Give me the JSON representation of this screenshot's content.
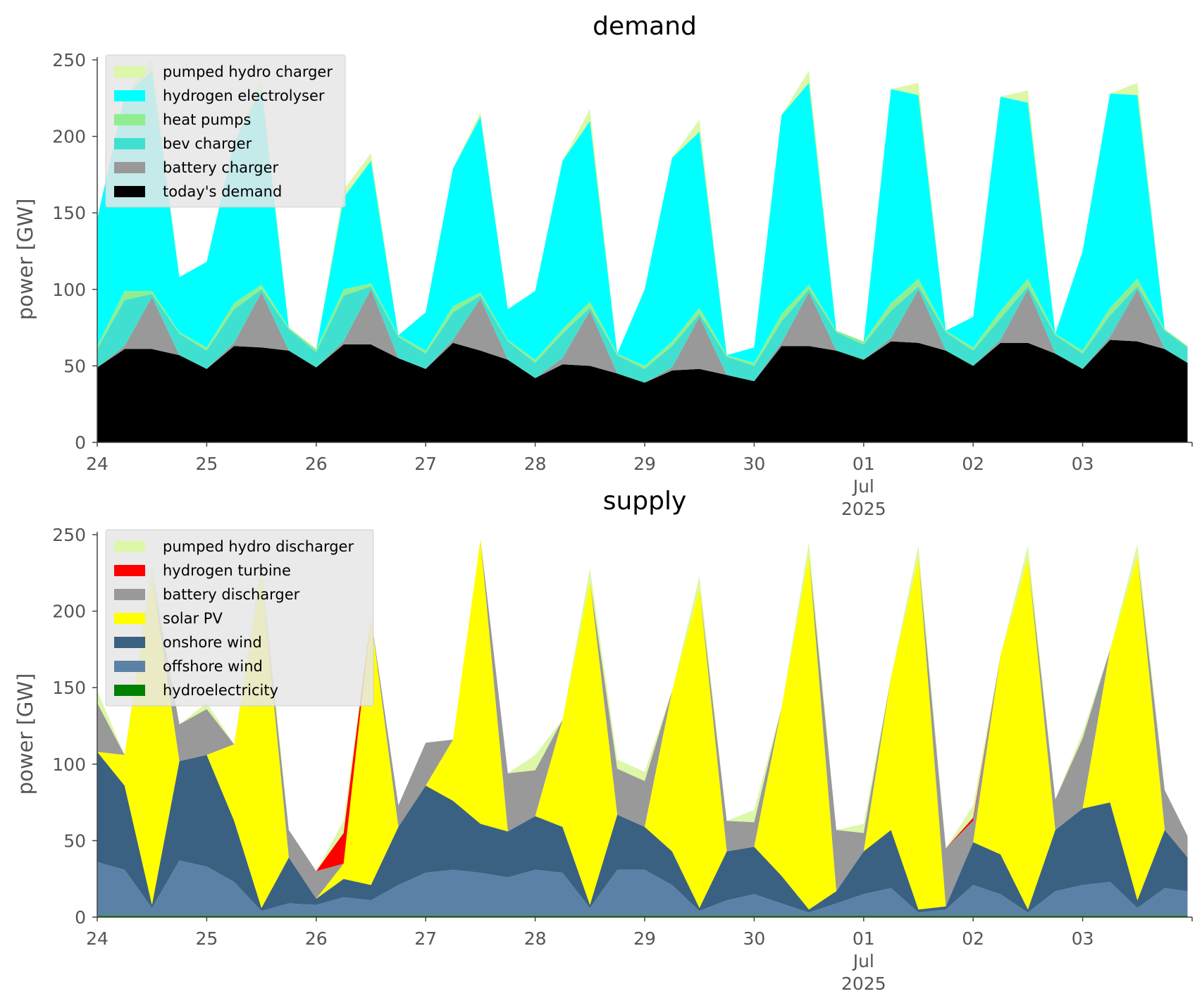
{
  "chart_data": [
    {
      "type": "area",
      "title": "demand",
      "xlabel": "",
      "ylabel": "power [GW]",
      "ylim": [
        0,
        250
      ],
      "yticks": [
        0,
        50,
        100,
        150,
        200,
        250
      ],
      "xlim": [
        "2025-06-24",
        "2025-07-04"
      ],
      "xticks": [
        "24",
        "25",
        "26",
        "27",
        "28",
        "29",
        "30",
        "01",
        "02",
        "03"
      ],
      "x_year_label": "2025",
      "x_month_label": "Jul",
      "legend_position": "top-left",
      "grid": false,
      "x": [
        "2025-06-24 00:00",
        "2025-06-24 06:00",
        "2025-06-24 12:00",
        "2025-06-24 18:00",
        "2025-06-25 00:00",
        "2025-06-25 06:00",
        "2025-06-25 12:00",
        "2025-06-25 18:00",
        "2025-06-26 00:00",
        "2025-06-26 06:00",
        "2025-06-26 12:00",
        "2025-06-26 18:00",
        "2025-06-27 00:00",
        "2025-06-27 06:00",
        "2025-06-27 12:00",
        "2025-06-27 18:00",
        "2025-06-28 00:00",
        "2025-06-28 06:00",
        "2025-06-28 12:00",
        "2025-06-28 18:00",
        "2025-06-29 00:00",
        "2025-06-29 06:00",
        "2025-06-29 12:00",
        "2025-06-29 18:00",
        "2025-06-30 00:00",
        "2025-06-30 06:00",
        "2025-06-30 12:00",
        "2025-06-30 18:00",
        "2025-07-01 00:00",
        "2025-07-01 06:00",
        "2025-07-01 12:00",
        "2025-07-01 18:00",
        "2025-07-02 00:00",
        "2025-07-02 06:00",
        "2025-07-02 12:00",
        "2025-07-02 18:00",
        "2025-07-03 00:00",
        "2025-07-03 06:00",
        "2025-07-03 12:00",
        "2025-07-03 18:00",
        "2025-07-03 23:00"
      ],
      "series": [
        {
          "name": "today's demand",
          "color": "#000000",
          "values": [
            49,
            61,
            61,
            57,
            48,
            63,
            62,
            60,
            49,
            64,
            64,
            55,
            48,
            65,
            60,
            54,
            42,
            51,
            50,
            45,
            39,
            47,
            48,
            44,
            40,
            63,
            63,
            60,
            54,
            66,
            65,
            60,
            50,
            65,
            65,
            58,
            48,
            67,
            66,
            61,
            52
          ]
        },
        {
          "name": "battery charger",
          "color": "#999999",
          "values": [
            0,
            2,
            34,
            0,
            0,
            2,
            36,
            0,
            0,
            2,
            36,
            0,
            0,
            2,
            34,
            0,
            0,
            4,
            36,
            0,
            0,
            2,
            34,
            0,
            0,
            2,
            35,
            0,
            0,
            2,
            35,
            0,
            0,
            2,
            35,
            0,
            0,
            2,
            34,
            0,
            0
          ]
        },
        {
          "name": "bev charger",
          "color": "#40e0d0",
          "values": [
            12,
            30,
            2,
            14,
            12,
            22,
            2,
            14,
            10,
            30,
            2,
            14,
            10,
            18,
            2,
            12,
            10,
            16,
            2,
            12,
            9,
            14,
            2,
            12,
            10,
            14,
            2,
            12,
            10,
            18,
            2,
            12,
            10,
            14,
            2,
            12,
            10,
            14,
            2,
            12,
            10
          ]
        },
        {
          "name": "heat pumps",
          "color": "#90ee90",
          "values": [
            2,
            6,
            2,
            1,
            2,
            4,
            3,
            1,
            2,
            4,
            2,
            1,
            2,
            4,
            2,
            1,
            2,
            3,
            4,
            1,
            2,
            3,
            4,
            1,
            2,
            5,
            3,
            1,
            2,
            5,
            5,
            1,
            2,
            5,
            5,
            1,
            2,
            5,
            5,
            1,
            1
          ]
        },
        {
          "name": "hydrogen electrolyser",
          "color": "#00ffff",
          "values": [
            83,
            127,
            144,
            36,
            56,
            105,
            128,
            0,
            0,
            60,
            80,
            0,
            25,
            90,
            115,
            20,
            45,
            110,
            118,
            0,
            50,
            120,
            115,
            0,
            10,
            130,
            132,
            0,
            0,
            140,
            120,
            0,
            20,
            140,
            115,
            0,
            65,
            140,
            120,
            0,
            0
          ]
        },
        {
          "name": "pumped hydro charger",
          "color": "#dcf7a7",
          "values": [
            0,
            0,
            8,
            0,
            0,
            0,
            7,
            0,
            0,
            5,
            5,
            0,
            0,
            0,
            3,
            0,
            0,
            0,
            8,
            0,
            0,
            0,
            8,
            0,
            0,
            0,
            8,
            0,
            0,
            0,
            8,
            0,
            0,
            0,
            8,
            0,
            0,
            0,
            8,
            0,
            0
          ]
        }
      ]
    },
    {
      "type": "area",
      "title": "supply",
      "xlabel": "",
      "ylabel": "power [GW]",
      "ylim": [
        0,
        250
      ],
      "yticks": [
        0,
        50,
        100,
        150,
        200,
        250
      ],
      "xlim": [
        "2025-06-24",
        "2025-07-04"
      ],
      "xticks": [
        "24",
        "25",
        "26",
        "27",
        "28",
        "29",
        "30",
        "01",
        "02",
        "03"
      ],
      "x_year_label": "2025",
      "x_month_label": "Jul",
      "legend_position": "top-left",
      "grid": false,
      "x": [
        "2025-06-24 00:00",
        "2025-06-24 06:00",
        "2025-06-24 12:00",
        "2025-06-24 18:00",
        "2025-06-25 00:00",
        "2025-06-25 06:00",
        "2025-06-25 12:00",
        "2025-06-25 18:00",
        "2025-06-26 00:00",
        "2025-06-26 06:00",
        "2025-06-26 12:00",
        "2025-06-26 18:00",
        "2025-06-27 00:00",
        "2025-06-27 06:00",
        "2025-06-27 12:00",
        "2025-06-27 18:00",
        "2025-06-28 00:00",
        "2025-06-28 06:00",
        "2025-06-28 12:00",
        "2025-06-28 18:00",
        "2025-06-29 00:00",
        "2025-06-29 06:00",
        "2025-06-29 12:00",
        "2025-06-29 18:00",
        "2025-06-30 00:00",
        "2025-06-30 06:00",
        "2025-06-30 12:00",
        "2025-06-30 18:00",
        "2025-07-01 00:00",
        "2025-07-01 06:00",
        "2025-07-01 12:00",
        "2025-07-01 18:00",
        "2025-07-02 00:00",
        "2025-07-02 06:00",
        "2025-07-02 12:00",
        "2025-07-02 18:00",
        "2025-07-03 00:00",
        "2025-07-03 06:00",
        "2025-07-03 12:00",
        "2025-07-03 18:00",
        "2025-07-03 23:00"
      ],
      "series": [
        {
          "name": "hydroelectricity",
          "color": "#008000",
          "values": [
            1,
            1,
            1,
            1,
            1,
            1,
            1,
            1,
            1,
            1,
            1,
            1,
            1,
            1,
            1,
            1,
            1,
            1,
            1,
            1,
            1,
            1,
            1,
            1,
            1,
            1,
            1,
            1,
            1,
            1,
            1,
            1,
            1,
            1,
            1,
            1,
            1,
            1,
            1,
            1,
            1
          ]
        },
        {
          "name": "offshore wind",
          "color": "#5b82a6",
          "values": [
            35,
            30,
            5,
            36,
            32,
            22,
            3,
            8,
            7,
            12,
            10,
            20,
            28,
            30,
            28,
            25,
            30,
            28,
            5,
            30,
            30,
            20,
            3,
            10,
            14,
            8,
            2,
            8,
            14,
            18,
            2,
            4,
            20,
            14,
            2,
            16,
            20,
            22,
            5,
            18,
            16
          ]
        },
        {
          "name": "onshore wind",
          "color": "#3b6182",
          "values": [
            72,
            55,
            2,
            65,
            73,
            40,
            2,
            30,
            4,
            12,
            10,
            38,
            57,
            45,
            32,
            30,
            35,
            30,
            2,
            36,
            28,
            22,
            2,
            32,
            31,
            18,
            2,
            8,
            28,
            38,
            2,
            2,
            28,
            26,
            2,
            40,
            50,
            52,
            5,
            38,
            22
          ]
        },
        {
          "name": "solar PV",
          "color": "#ffff00",
          "values": [
            0,
            20,
            216,
            0,
            0,
            50,
            217,
            0,
            0,
            10,
            175,
            0,
            0,
            40,
            186,
            0,
            0,
            70,
            212,
            0,
            0,
            105,
            209,
            0,
            0,
            110,
            232,
            0,
            0,
            100,
            230,
            0,
            0,
            130,
            230,
            0,
            0,
            100,
            225,
            0,
            0
          ]
        },
        {
          "name": "battery discharger",
          "color": "#999999",
          "values": [
            32,
            0,
            0,
            24,
            30,
            0,
            0,
            18,
            18,
            0,
            0,
            14,
            28,
            0,
            0,
            38,
            30,
            0,
            0,
            30,
            30,
            0,
            0,
            20,
            16,
            0,
            0,
            40,
            12,
            0,
            0,
            38,
            14,
            0,
            0,
            20,
            46,
            0,
            0,
            26,
            14
          ]
        },
        {
          "name": "hydrogen turbine",
          "color": "#ff0000",
          "values": [
            0,
            0,
            0,
            0,
            0,
            0,
            0,
            0,
            0,
            20,
            0,
            0,
            0,
            0,
            0,
            0,
            0,
            0,
            0,
            0,
            0,
            0,
            0,
            0,
            0,
            0,
            0,
            0,
            0,
            0,
            0,
            0,
            2,
            0,
            0,
            0,
            0,
            0,
            0,
            0,
            0
          ]
        },
        {
          "name": "pumped hydro discharger",
          "color": "#dcf7a7",
          "values": [
            8,
            0,
            8,
            0,
            4,
            0,
            10,
            0,
            0,
            8,
            0,
            0,
            0,
            0,
            0,
            0,
            10,
            0,
            8,
            6,
            6,
            0,
            8,
            0,
            8,
            0,
            8,
            0,
            6,
            0,
            8,
            0,
            8,
            0,
            8,
            0,
            4,
            0,
            8,
            0,
            0
          ]
        }
      ]
    }
  ]
}
